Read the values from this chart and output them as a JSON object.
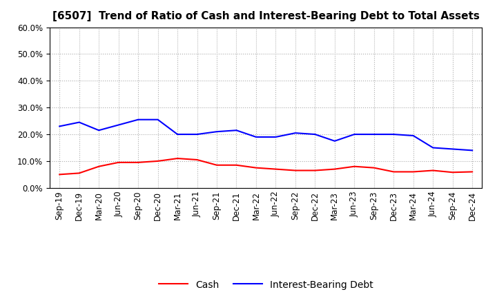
{
  "title": "[6507]  Trend of Ratio of Cash and Interest-Bearing Debt to Total Assets",
  "x_labels": [
    "Sep-19",
    "Dec-19",
    "Mar-20",
    "Jun-20",
    "Sep-20",
    "Dec-20",
    "Mar-21",
    "Jun-21",
    "Sep-21",
    "Dec-21",
    "Mar-22",
    "Jun-22",
    "Sep-22",
    "Dec-22",
    "Mar-23",
    "Jun-23",
    "Sep-23",
    "Dec-23",
    "Mar-24",
    "Jun-24",
    "Sep-24",
    "Dec-24"
  ],
  "cash": [
    0.05,
    0.055,
    0.08,
    0.095,
    0.095,
    0.1,
    0.11,
    0.105,
    0.085,
    0.085,
    0.075,
    0.07,
    0.065,
    0.065,
    0.07,
    0.08,
    0.075,
    0.06,
    0.06,
    0.065,
    0.058,
    0.06
  ],
  "interest_bearing_debt": [
    0.23,
    0.245,
    0.215,
    0.235,
    0.255,
    0.255,
    0.2,
    0.2,
    0.21,
    0.215,
    0.19,
    0.19,
    0.205,
    0.2,
    0.175,
    0.2,
    0.2,
    0.2,
    0.195,
    0.15,
    0.145,
    0.14
  ],
  "cash_color": "#ff0000",
  "debt_color": "#0000ff",
  "background_color": "#ffffff",
  "grid_color": "#aaaaaa",
  "ylim": [
    0.0,
    0.6
  ],
  "yticks": [
    0.0,
    0.1,
    0.2,
    0.3,
    0.4,
    0.5,
    0.6
  ],
  "legend_cash": "Cash",
  "legend_debt": "Interest-Bearing Debt",
  "title_fontsize": 11,
  "tick_fontsize": 8.5,
  "legend_fontsize": 10
}
